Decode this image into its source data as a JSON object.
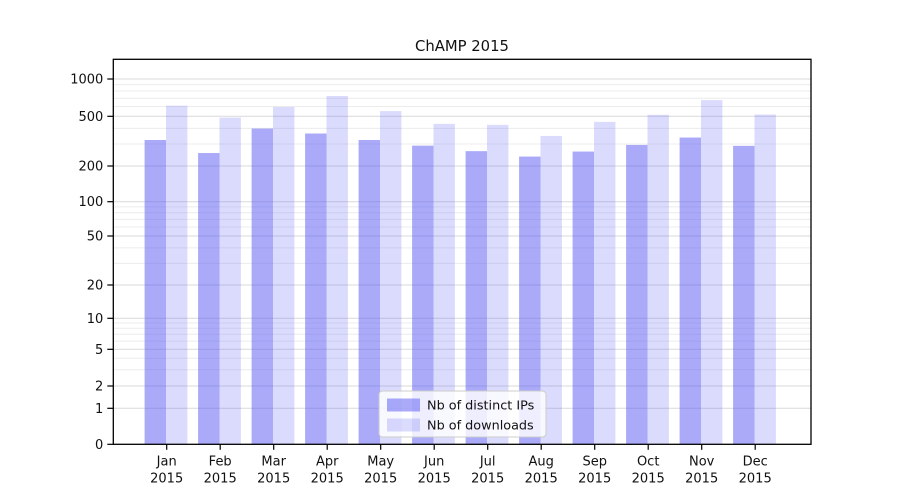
{
  "chart_data": {
    "type": "bar",
    "title": "ChAMP 2015",
    "categories": [
      "Jan",
      "Feb",
      "Mar",
      "Apr",
      "May",
      "Jun",
      "Jul",
      "Aug",
      "Sep",
      "Oct",
      "Nov",
      "Dec"
    ],
    "year_label": "2015",
    "series": [
      {
        "name": "Nb of distinct IPs",
        "color": "rgba(86,86,244,0.5)",
        "solid_color_on_white": "#aaaaf9",
        "values": [
          323,
          254,
          399,
          364,
          323,
          291,
          263,
          238,
          261,
          295,
          338,
          290
        ]
      },
      {
        "name": "Nb of downloads",
        "color": "rgba(86,86,244,0.21)",
        "solid_color_on_white": "#dcdcfc",
        "values": [
          609,
          488,
          595,
          729,
          551,
          435,
          427,
          348,
          451,
          514,
          675,
          517
        ]
      }
    ],
    "xlabel": "",
    "ylabel": "",
    "yscale": "symlog",
    "ylim": [
      0,
      1450
    ],
    "yticks": [
      0,
      1,
      2,
      5,
      10,
      20,
      50,
      100,
      200,
      500,
      1000
    ],
    "grid": true,
    "grid_minor_values": [
      3,
      4,
      6,
      7,
      8,
      9,
      30,
      40,
      60,
      70,
      80,
      90,
      300,
      400,
      600,
      700,
      800,
      900
    ],
    "legend_position": "lower center",
    "colors": {
      "major_grid": "#d9d9d9",
      "minor_grid": "#ececec",
      "axis": "#000000",
      "legend_border": "#cccccc",
      "legend_background": "rgba(255,255,255,0.8)"
    }
  }
}
